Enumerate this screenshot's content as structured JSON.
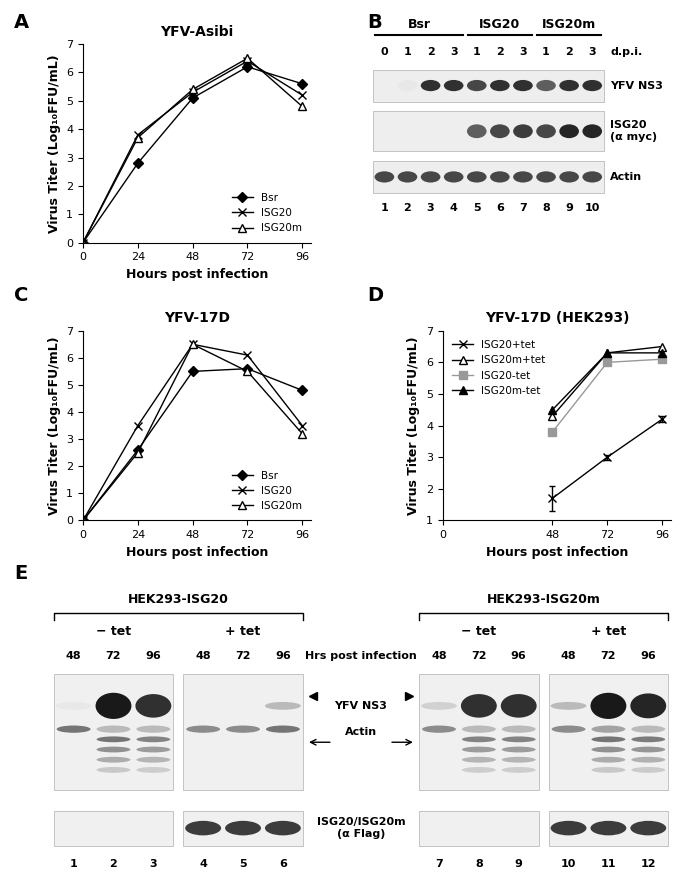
{
  "chart_data": [
    {
      "panel": "A",
      "type": "line",
      "title": "YFV-Asibi",
      "x_label": "Hours post infection",
      "y_label": "Virus Titer (Log₁₀FFU/mL)",
      "x": [
        0,
        24,
        48,
        72,
        96
      ],
      "series": [
        {
          "name": "Bsr",
          "color": "#000000",
          "marker": "diamond",
          "values": [
            0,
            2.8,
            5.1,
            6.2,
            5.6
          ]
        },
        {
          "name": "ISG20",
          "color": "#000000",
          "marker": "x",
          "values": [
            0,
            3.8,
            5.3,
            6.4,
            5.2
          ]
        },
        {
          "name": "ISG20m",
          "color": "#000000",
          "marker": "triangle_open",
          "values": [
            0,
            3.7,
            5.4,
            6.5,
            4.8
          ]
        }
      ],
      "xlim": [
        0,
        100
      ],
      "xticks": [
        0,
        24,
        48,
        72,
        96
      ],
      "ylim": [
        0,
        7
      ],
      "yticks": [
        0,
        1,
        2,
        3,
        4,
        5,
        6,
        7
      ],
      "legend": "lower right",
      "grid": false
    },
    {
      "panel": "C",
      "type": "line",
      "title": "YFV-17D",
      "x_label": "Hours post infection",
      "y_label": "Virus Titer (Log₁₀FFU/mL)",
      "x": [
        0,
        24,
        48,
        72,
        96
      ],
      "series": [
        {
          "name": "Bsr",
          "color": "#000000",
          "marker": "diamond",
          "values": [
            0,
            2.6,
            5.5,
            5.6,
            4.8
          ]
        },
        {
          "name": "ISG20",
          "color": "#000000",
          "marker": "x",
          "values": [
            0,
            3.5,
            6.5,
            6.1,
            3.5
          ]
        },
        {
          "name": "ISG20m",
          "color": "#000000",
          "marker": "triangle_open",
          "values": [
            0,
            2.5,
            6.5,
            5.5,
            3.2
          ]
        }
      ],
      "xlim": [
        0,
        100
      ],
      "xticks": [
        0,
        24,
        48,
        72,
        96
      ],
      "ylim": [
        0,
        7
      ],
      "yticks": [
        0,
        1,
        2,
        3,
        4,
        5,
        6,
        7
      ],
      "legend": "lower right",
      "grid": false
    },
    {
      "panel": "D",
      "type": "line",
      "title": "YFV-17D (HEK293)",
      "x_label": "Hours post infection",
      "y_label": "Virus Titer (Log₁₀FFU/mL)",
      "x": [
        48,
        72,
        96
      ],
      "series": [
        {
          "name": "ISG20+tet",
          "color": "#000000",
          "marker": "x",
          "values": [
            1.7,
            3.0,
            4.2
          ],
          "errors": [
            0.4,
            0.08,
            0.1
          ]
        },
        {
          "name": "ISG20m+tet",
          "color": "#000000",
          "marker": "triangle_open",
          "values": [
            4.3,
            6.3,
            6.5
          ]
        },
        {
          "name": "ISG20-tet",
          "color": "#999999",
          "marker": "square",
          "values": [
            3.8,
            6.0,
            6.1
          ]
        },
        {
          "name": "ISG20m-tet",
          "color": "#000000",
          "marker": "triangle",
          "values": [
            4.5,
            6.3,
            6.3
          ]
        }
      ],
      "xlim": [
        0,
        100
      ],
      "xticks": [
        0,
        48,
        72,
        96
      ],
      "ylim": [
        1,
        7
      ],
      "yticks": [
        1,
        2,
        3,
        4,
        5,
        6,
        7
      ],
      "legend": "upper left",
      "grid": false
    }
  ],
  "blots": [
    {
      "panel": "B",
      "groups": [
        {
          "label": "Bsr",
          "lanes": 4
        },
        {
          "label": "ISG20",
          "lanes": 3
        },
        {
          "label": "ISG20m",
          "lanes": 3
        }
      ],
      "dpi": [
        0,
        1,
        2,
        3,
        1,
        2,
        3,
        1,
        2,
        3
      ],
      "dpi_label": "d.p.i.",
      "lanes": [
        1,
        2,
        3,
        4,
        5,
        6,
        7,
        8,
        9,
        10
      ],
      "rows": [
        {
          "label": "YFV NS3",
          "bands": [
            0,
            0.1,
            0.9,
            0.9,
            0.8,
            0.9,
            0.9,
            0.7,
            0.9,
            0.9
          ]
        },
        {
          "label": "ISG20\n(α myc)",
          "bands": [
            0,
            0,
            0,
            0,
            0.7,
            0.8,
            0.85,
            0.8,
            0.95,
            0.95
          ]
        },
        {
          "label": "Actin",
          "bands": [
            0.8,
            0.8,
            0.8,
            0.8,
            0.8,
            0.8,
            0.8,
            0.8,
            0.8,
            0.8
          ]
        }
      ]
    },
    {
      "panel": "E",
      "hours_label": "Hrs post infection",
      "row_labels": {
        "ns3": "YFV NS3",
        "actin": "Actin",
        "flag": "ISG20/ISG20m\n(α Flag)"
      },
      "halves": [
        {
          "title": "HEK293-ISG20",
          "conditions": [
            {
              "label": "− tet",
              "hours": [
                48,
                72,
                96
              ],
              "lanes": [
                1,
                2,
                3
              ],
              "ns3": [
                0.1,
                1.0,
                0.9
              ],
              "actin": [
                0.6,
                0.3,
                0.3
              ],
              "flag": [
                0,
                0,
                0
              ]
            },
            {
              "label": "+ tet",
              "hours": [
                48,
                72,
                96
              ],
              "lanes": [
                4,
                5,
                6
              ],
              "ns3": [
                0,
                0,
                0.3
              ],
              "actin": [
                0.5,
                0.5,
                0.6
              ],
              "flag": [
                0.85,
                0.85,
                0.85
              ]
            }
          ]
        },
        {
          "title": "HEK293-ISG20m",
          "conditions": [
            {
              "label": "− tet",
              "hours": [
                48,
                72,
                96
              ],
              "lanes": [
                7,
                8,
                9
              ],
              "ns3": [
                0.2,
                0.9,
                0.9
              ],
              "actin": [
                0.5,
                0.3,
                0.3
              ],
              "flag": [
                0,
                0,
                0
              ]
            },
            {
              "label": "+ tet",
              "hours": [
                48,
                72,
                96
              ],
              "lanes": [
                10,
                11,
                12
              ],
              "ns3": [
                0.3,
                1.0,
                0.95
              ],
              "actin": [
                0.5,
                0.4,
                0.3
              ],
              "flag": [
                0.85,
                0.85,
                0.85
              ]
            }
          ]
        }
      ]
    }
  ]
}
